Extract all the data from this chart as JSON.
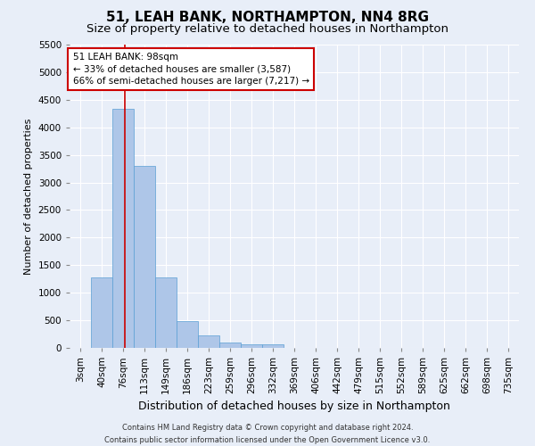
{
  "title": "51, LEAH BANK, NORTHAMPTON, NN4 8RG",
  "subtitle": "Size of property relative to detached houses in Northampton",
  "xlabel": "Distribution of detached houses by size in Northampton",
  "ylabel": "Number of detached properties",
  "footer_line1": "Contains HM Land Registry data © Crown copyright and database right 2024.",
  "footer_line2": "Contains public sector information licensed under the Open Government Licence v3.0.",
  "bar_labels": [
    "3sqm",
    "40sqm",
    "76sqm",
    "113sqm",
    "149sqm",
    "186sqm",
    "223sqm",
    "259sqm",
    "296sqm",
    "332sqm",
    "369sqm",
    "406sqm",
    "442sqm",
    "479sqm",
    "515sqm",
    "552sqm",
    "589sqm",
    "625sqm",
    "662sqm",
    "698sqm",
    "735sqm"
  ],
  "bar_values": [
    0,
    1270,
    4330,
    3300,
    1280,
    490,
    220,
    100,
    70,
    60,
    0,
    0,
    0,
    0,
    0,
    0,
    0,
    0,
    0,
    0,
    0
  ],
  "bar_color": "#aec6e8",
  "bar_edge_color": "#5a9fd4",
  "annotation_text": "51 LEAH BANK: 98sqm\n← 33% of detached houses are smaller (3,587)\n66% of semi-detached houses are larger (7,217) →",
  "annotation_box_color": "#ffffff",
  "annotation_box_edge": "#cc0000",
  "vline_x": 2.6,
  "vline_color": "#cc0000",
  "ylim": [
    0,
    5500
  ],
  "yticks": [
    0,
    500,
    1000,
    1500,
    2000,
    2500,
    3000,
    3500,
    4000,
    4500,
    5000,
    5500
  ],
  "background_color": "#e8eef8",
  "plot_bg_color": "#e8eef8",
  "grid_color": "#ffffff",
  "title_fontsize": 11,
  "subtitle_fontsize": 9.5,
  "xlabel_fontsize": 9,
  "ylabel_fontsize": 8,
  "tick_fontsize": 7.5,
  "annot_fontsize": 7.5,
  "footer_fontsize": 6
}
